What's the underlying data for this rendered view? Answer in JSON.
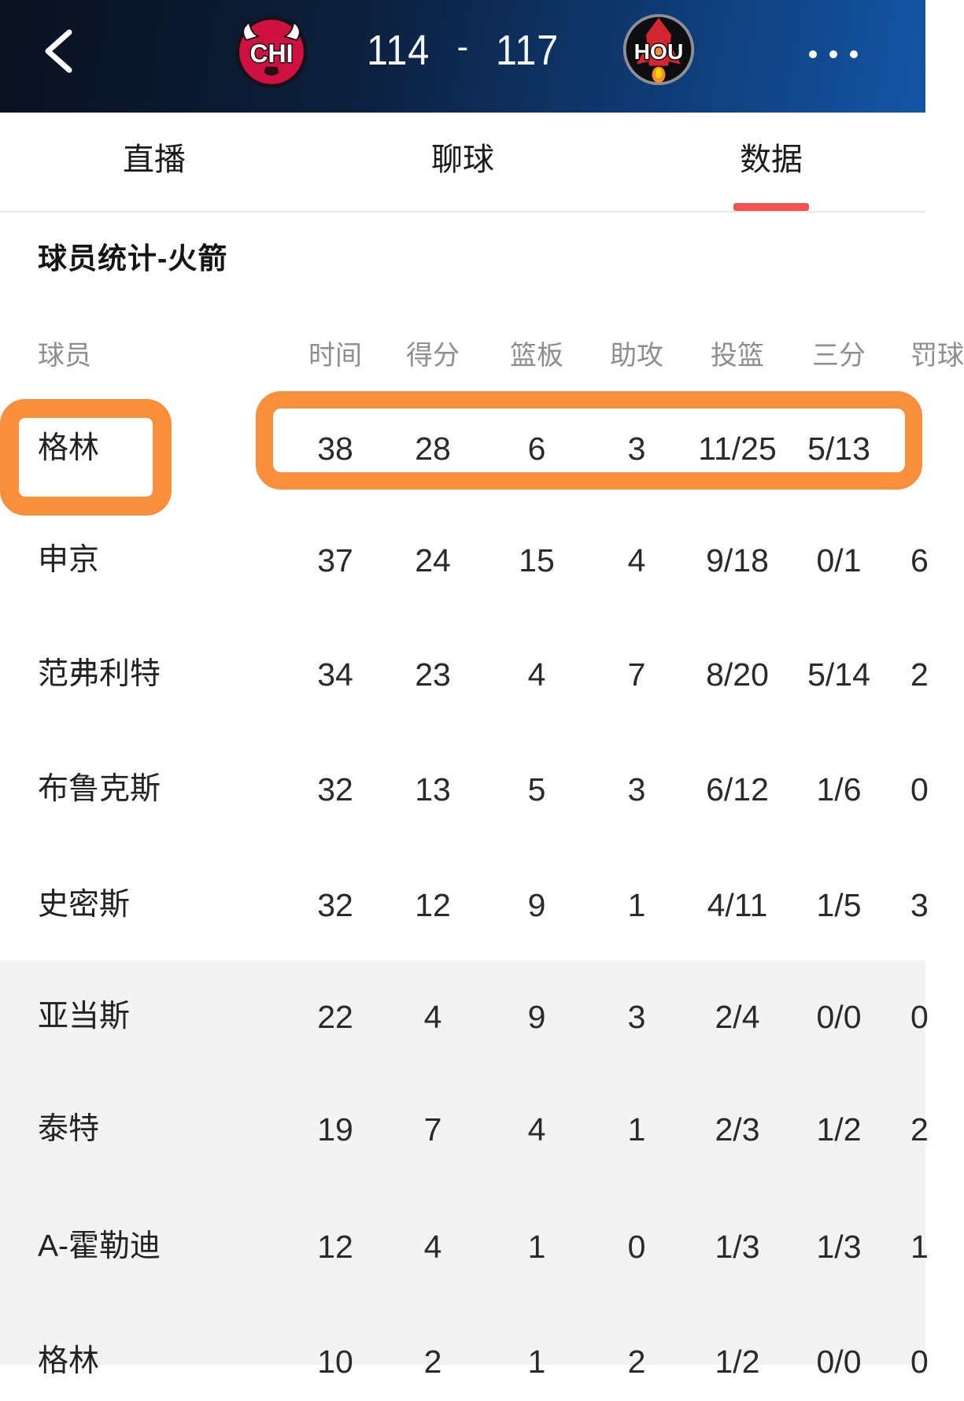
{
  "navbar": {
    "home_team_abbr": "CHI",
    "away_team_abbr": "HOU",
    "score_home": "114",
    "score_separator": "-",
    "score_away": "117"
  },
  "tabs": [
    {
      "label": "直播",
      "active": false
    },
    {
      "label": "聊球",
      "active": false
    },
    {
      "label": "数据",
      "active": true
    }
  ],
  "section_title": "球员统计-火箭",
  "table": {
    "player_col_header": "球员",
    "stat_headers": [
      "时间",
      "得分",
      "篮板",
      "助攻",
      "投篮",
      "三分"
    ],
    "ft_header_partial": "罚球",
    "rows": [
      {
        "player": "格林",
        "highlight": true,
        "stats": [
          "38",
          "28",
          "6",
          "3",
          "11/25",
          "5/13"
        ],
        "ft_partial": ""
      },
      {
        "player": "申京",
        "highlight": false,
        "stats": [
          "37",
          "24",
          "15",
          "4",
          "9/18",
          "0/1"
        ],
        "ft_partial": "6"
      },
      {
        "player": "范弗利特",
        "highlight": false,
        "stats": [
          "34",
          "23",
          "4",
          "7",
          "8/20",
          "5/14"
        ],
        "ft_partial": "2"
      },
      {
        "player": "布鲁克斯",
        "highlight": false,
        "stats": [
          "32",
          "13",
          "5",
          "3",
          "6/12",
          "1/6"
        ],
        "ft_partial": "0"
      },
      {
        "player": "史密斯",
        "highlight": false,
        "stats": [
          "32",
          "12",
          "9",
          "1",
          "4/11",
          "1/5"
        ],
        "ft_partial": "3"
      },
      {
        "player": "亚当斯",
        "highlight": false,
        "stats": [
          "22",
          "4",
          "9",
          "3",
          "2/4",
          "0/0"
        ],
        "ft_partial": "0"
      },
      {
        "player": "泰特",
        "highlight": false,
        "stats": [
          "19",
          "7",
          "4",
          "1",
          "2/3",
          "1/2"
        ],
        "ft_partial": "2"
      },
      {
        "player": "A-霍勒迪",
        "highlight": false,
        "stats": [
          "12",
          "4",
          "1",
          "0",
          "1/3",
          "1/3"
        ],
        "ft_partial": "1"
      },
      {
        "player": "格林",
        "highlight": false,
        "stats": [
          "10",
          "2",
          "1",
          "2",
          "1/2",
          "0/0"
        ],
        "ft_partial": "0"
      }
    ]
  },
  "colors": {
    "annotation_orange": "#f78f3d",
    "active_tab_underline": "#f05352",
    "navbar_gradient_start": "#0a111f",
    "navbar_gradient_end": "#1455a6",
    "bulls_red": "#ce1141",
    "rockets_red": "#d22630"
  },
  "icons": {
    "back": "chevron-left-icon",
    "more": "ellipsis-icon"
  }
}
